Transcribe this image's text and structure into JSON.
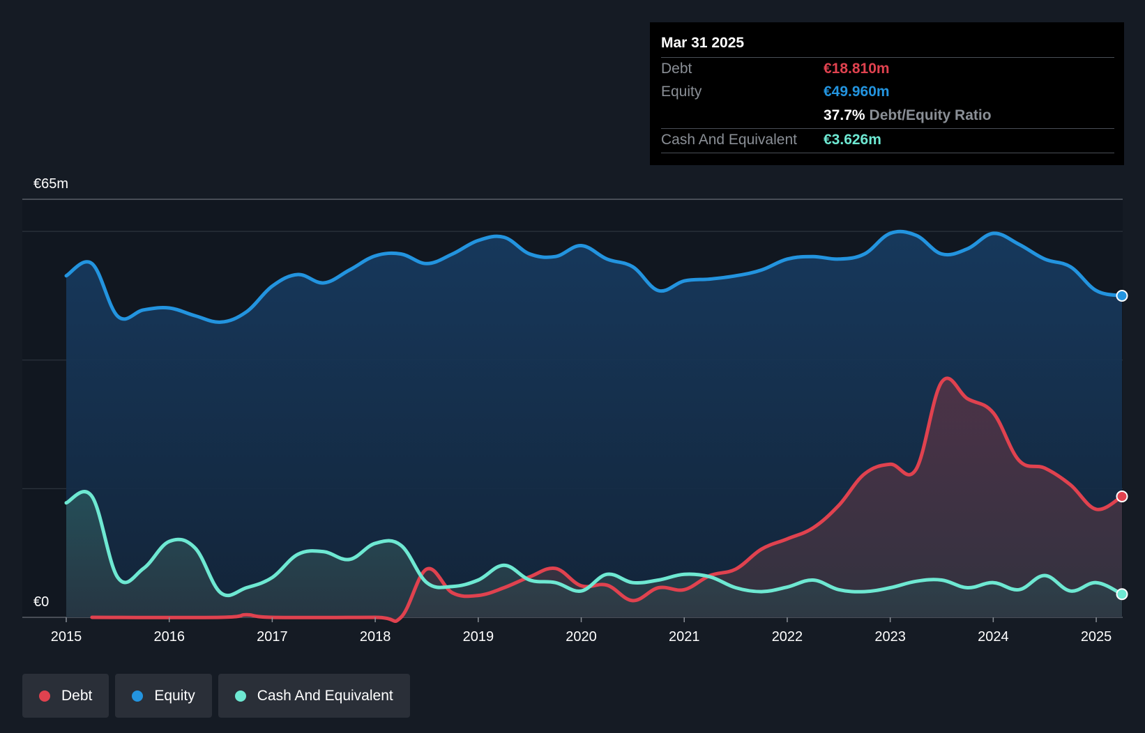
{
  "tooltip": {
    "date": "Mar 31 2025",
    "debt_label": "Debt",
    "debt_value": "€18.810m",
    "equity_label": "Equity",
    "equity_value": "€49.960m",
    "ratio_value": "37.7%",
    "ratio_label": "Debt/Equity Ratio",
    "cash_label": "Cash And Equivalent",
    "cash_value": "€3.626m"
  },
  "legend": {
    "debt": "Debt",
    "equity": "Equity",
    "cash": "Cash And Equivalent"
  },
  "colors": {
    "debt": "#e0424f",
    "equity": "#2394df",
    "cash": "#6ee8d2",
    "background": "#151b24"
  },
  "chart_data": {
    "type": "area",
    "title": "",
    "xlabel": "",
    "ylabel": "",
    "y_axis_labels": {
      "top": "€65m",
      "bottom": "€0"
    },
    "ylim": [
      0,
      65
    ],
    "xlim": [
      2015,
      2025.25
    ],
    "grid": true,
    "x_ticks": [
      "2015",
      "2016",
      "2017",
      "2018",
      "2019",
      "2020",
      "2021",
      "2022",
      "2023",
      "2024",
      "2025"
    ],
    "series": [
      {
        "name": "Equity",
        "color": "#2394df",
        "points": [
          [
            2015.0,
            53.1
          ],
          [
            2015.25,
            55.0
          ],
          [
            2015.5,
            46.8
          ],
          [
            2015.75,
            47.8
          ],
          [
            2016.0,
            48.1
          ],
          [
            2016.25,
            46.9
          ],
          [
            2016.5,
            45.9
          ],
          [
            2016.75,
            47.5
          ],
          [
            2017.0,
            51.5
          ],
          [
            2017.25,
            53.3
          ],
          [
            2017.5,
            52.0
          ],
          [
            2017.75,
            54.0
          ],
          [
            2018.0,
            56.2
          ],
          [
            2018.25,
            56.5
          ],
          [
            2018.5,
            55.0
          ],
          [
            2018.75,
            56.5
          ],
          [
            2019.0,
            58.6
          ],
          [
            2019.25,
            59.1
          ],
          [
            2019.5,
            56.5
          ],
          [
            2019.75,
            56.1
          ],
          [
            2020.0,
            57.8
          ],
          [
            2020.25,
            55.7
          ],
          [
            2020.5,
            54.5
          ],
          [
            2020.75,
            50.8
          ],
          [
            2021.0,
            52.3
          ],
          [
            2021.25,
            52.6
          ],
          [
            2021.5,
            53.1
          ],
          [
            2021.75,
            54.0
          ],
          [
            2022.0,
            55.7
          ],
          [
            2022.25,
            56.1
          ],
          [
            2022.5,
            55.7
          ],
          [
            2022.75,
            56.5
          ],
          [
            2023.0,
            59.7
          ],
          [
            2023.25,
            59.4
          ],
          [
            2023.5,
            56.5
          ],
          [
            2023.75,
            57.3
          ],
          [
            2024.0,
            59.7
          ],
          [
            2024.25,
            58.0
          ],
          [
            2024.5,
            55.7
          ],
          [
            2024.75,
            54.5
          ],
          [
            2025.0,
            50.8
          ],
          [
            2025.25,
            50.0
          ]
        ]
      },
      {
        "name": "Debt",
        "color": "#e0424f",
        "points": [
          [
            2015.25,
            0.0
          ],
          [
            2016.5,
            0.0
          ],
          [
            2016.75,
            0.4
          ],
          [
            2017.0,
            0.0
          ],
          [
            2018.0,
            0.0
          ],
          [
            2018.25,
            0.0
          ],
          [
            2018.5,
            7.5
          ],
          [
            2018.75,
            3.8
          ],
          [
            2019.0,
            3.4
          ],
          [
            2019.25,
            4.6
          ],
          [
            2019.5,
            6.3
          ],
          [
            2019.75,
            7.6
          ],
          [
            2020.0,
            4.9
          ],
          [
            2020.25,
            5.0
          ],
          [
            2020.5,
            2.6
          ],
          [
            2020.75,
            4.6
          ],
          [
            2021.0,
            4.3
          ],
          [
            2021.25,
            6.5
          ],
          [
            2021.5,
            7.5
          ],
          [
            2021.75,
            10.6
          ],
          [
            2022.0,
            12.2
          ],
          [
            2022.25,
            13.9
          ],
          [
            2022.5,
            17.4
          ],
          [
            2022.75,
            22.3
          ],
          [
            2023.0,
            23.8
          ],
          [
            2023.25,
            23.0
          ],
          [
            2023.5,
            36.6
          ],
          [
            2023.75,
            34.0
          ],
          [
            2024.0,
            31.8
          ],
          [
            2024.25,
            24.4
          ],
          [
            2024.5,
            23.2
          ],
          [
            2024.75,
            20.6
          ],
          [
            2025.0,
            16.8
          ],
          [
            2025.25,
            18.8
          ]
        ]
      },
      {
        "name": "Cash And Equivalent",
        "color": "#6ee8d2",
        "points": [
          [
            2015.0,
            17.8
          ],
          [
            2015.25,
            18.8
          ],
          [
            2015.5,
            6.2
          ],
          [
            2015.75,
            7.6
          ],
          [
            2016.0,
            11.8
          ],
          [
            2016.25,
            10.8
          ],
          [
            2016.5,
            3.8
          ],
          [
            2016.75,
            4.6
          ],
          [
            2017.0,
            6.2
          ],
          [
            2017.25,
            9.8
          ],
          [
            2017.5,
            10.2
          ],
          [
            2017.75,
            9.0
          ],
          [
            2018.0,
            11.5
          ],
          [
            2018.25,
            11.2
          ],
          [
            2018.5,
            5.4
          ],
          [
            2018.75,
            4.8
          ],
          [
            2019.0,
            5.8
          ],
          [
            2019.25,
            8.1
          ],
          [
            2019.5,
            5.8
          ],
          [
            2019.75,
            5.4
          ],
          [
            2020.0,
            4.1
          ],
          [
            2020.25,
            6.7
          ],
          [
            2020.5,
            5.4
          ],
          [
            2020.75,
            5.8
          ],
          [
            2021.0,
            6.7
          ],
          [
            2021.25,
            6.3
          ],
          [
            2021.5,
            4.6
          ],
          [
            2021.75,
            4.0
          ],
          [
            2022.0,
            4.7
          ],
          [
            2022.25,
            5.8
          ],
          [
            2022.5,
            4.3
          ],
          [
            2022.75,
            4.0
          ],
          [
            2023.0,
            4.6
          ],
          [
            2023.25,
            5.6
          ],
          [
            2023.5,
            5.8
          ],
          [
            2023.75,
            4.6
          ],
          [
            2024.0,
            5.4
          ],
          [
            2024.25,
            4.3
          ],
          [
            2024.5,
            6.5
          ],
          [
            2024.75,
            4.1
          ],
          [
            2025.0,
            5.4
          ],
          [
            2025.25,
            3.6
          ]
        ]
      }
    ]
  }
}
